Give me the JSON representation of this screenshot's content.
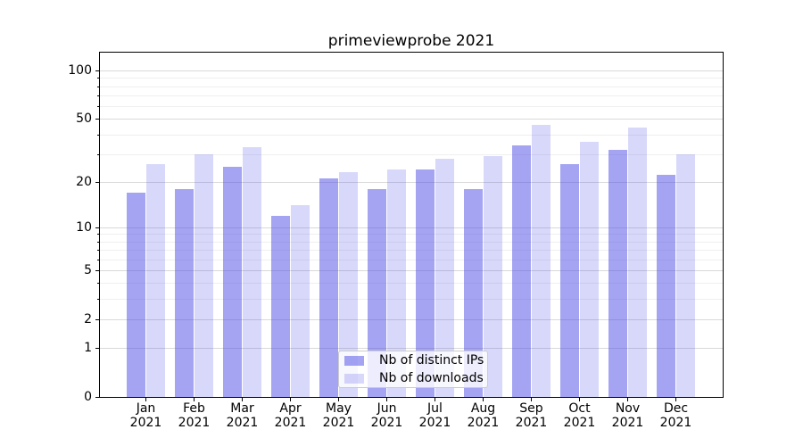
{
  "title": "primeviewprobe 2021",
  "chart_data": {
    "type": "bar",
    "title": "primeviewprobe 2021",
    "categories": [
      "Jan",
      "Feb",
      "Mar",
      "Apr",
      "May",
      "Jun",
      "Jul",
      "Aug",
      "Sep",
      "Oct",
      "Nov",
      "Dec"
    ],
    "category_year": "2021",
    "series": [
      {
        "name": "Nb of distinct IPs",
        "color": "#4646e6",
        "alpha": 0.49,
        "values": [
          17,
          18,
          25,
          12,
          21,
          18,
          24,
          18,
          34,
          26,
          32,
          22
        ]
      },
      {
        "name": "Nb of downloads",
        "color": "#4646e6",
        "alpha": 0.21,
        "values": [
          26,
          30,
          33,
          14,
          23,
          24,
          28,
          29,
          46,
          36,
          44,
          30
        ]
      }
    ],
    "xlabel": "",
    "ylabel": "",
    "scale": "log1p",
    "ylim": [
      0,
      129
    ],
    "yticks_major": [
      0,
      1,
      2,
      5,
      10,
      20,
      50,
      100
    ],
    "yticks_minor": [
      3,
      4,
      6,
      7,
      8,
      9,
      30,
      40,
      60,
      70,
      80,
      90
    ],
    "grid": true,
    "grid_color_major": "#d9d9d9",
    "grid_color_minor": "#efefef",
    "legend_position": "lower-center"
  },
  "legend": {
    "items": [
      "Nb of distinct IPs",
      "Nb of downloads"
    ]
  }
}
